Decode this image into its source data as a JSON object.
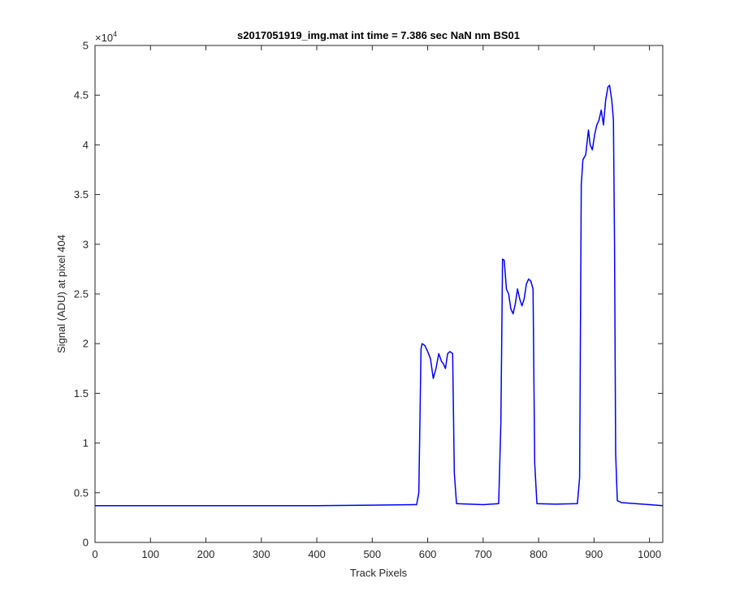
{
  "chart_data": {
    "type": "line",
    "title": "s2017051919_img.mat int time = 7.386 sec  NaN nm BS01",
    "xlabel": "Track Pixels",
    "ylabel": "Signal (ADU) at pixel 404",
    "xlim": [
      0,
      1024
    ],
    "ylim": [
      0,
      50000
    ],
    "xticks": [
      0,
      100,
      200,
      300,
      400,
      500,
      600,
      700,
      800,
      900,
      1000
    ],
    "xtick_labels": [
      "0",
      "100",
      "200",
      "300",
      "400",
      "500",
      "600",
      "700",
      "800",
      "900",
      "1000"
    ],
    "yticks": [
      0,
      5000,
      10000,
      15000,
      20000,
      25000,
      30000,
      35000,
      40000,
      45000,
      50000
    ],
    "ytick_labels": [
      "0",
      "0.5",
      "1",
      "1.5",
      "2",
      "2.5",
      "3",
      "3.5",
      "4",
      "4.5",
      "5"
    ],
    "y_exponent": {
      "base": "×10",
      "power": "4"
    },
    "grid": false,
    "line_color": "#0000ff",
    "series": [
      {
        "x": [
          0,
          100,
          200,
          300,
          400,
          500,
          580,
          584,
          588,
          590,
          595,
          600,
          605,
          610,
          615,
          620,
          625,
          628,
          632,
          636,
          640,
          645,
          648,
          652,
          700,
          728,
          732,
          735,
          738,
          742,
          746,
          750,
          754,
          758,
          762,
          766,
          770,
          774,
          778,
          782,
          786,
          790,
          793,
          797,
          830,
          870,
          874,
          877,
          880,
          885,
          890,
          893,
          897,
          901,
          905,
          909,
          913,
          917,
          921,
          925,
          928,
          932,
          935,
          937,
          939,
          942,
          950,
          1000,
          1024
        ],
        "y": [
          3700,
          3700,
          3700,
          3700,
          3700,
          3750,
          3800,
          5000,
          19500,
          20000,
          19800,
          19200,
          18500,
          16500,
          17500,
          19000,
          18200,
          18000,
          17500,
          19000,
          19200,
          19000,
          7000,
          3900,
          3800,
          3900,
          12000,
          28500,
          28400,
          25500,
          25000,
          23500,
          23000,
          24000,
          25500,
          24500,
          23800,
          24500,
          26000,
          26500,
          26300,
          25500,
          8000,
          3900,
          3850,
          3900,
          6500,
          36000,
          38500,
          39000,
          41500,
          40000,
          39500,
          41000,
          42000,
          42500,
          43500,
          42000,
          44500,
          45800,
          46000,
          44500,
          42500,
          30000,
          9000,
          4200,
          4000,
          3800,
          3700
        ]
      }
    ]
  }
}
